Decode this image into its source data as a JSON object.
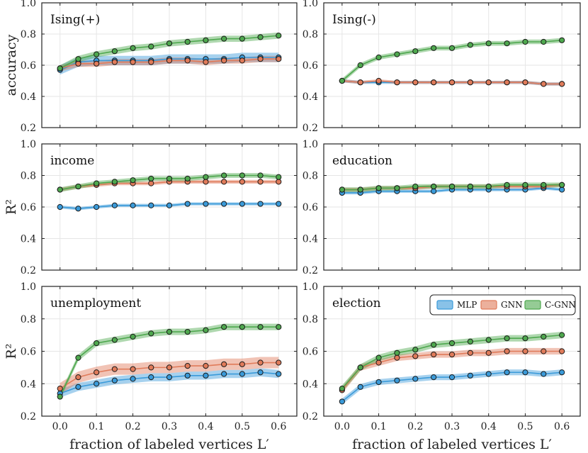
{
  "figure": {
    "xlabel": "fraction of labeled vertices L′",
    "legend": [
      {
        "name": "MLP",
        "color": "#3a9ad9"
      },
      {
        "name": "GNN",
        "color": "#e07b5a"
      },
      {
        "name": "C-GNN",
        "color": "#4ea84e"
      }
    ],
    "legend_position": "top-right of election panel"
  },
  "chart_data": [
    {
      "type": "line",
      "title": "Ising(+)",
      "ylabel": "accuracy",
      "xlabel": "",
      "xlim": [
        -0.05,
        0.65
      ],
      "ylim": [
        0.2,
        1.0
      ],
      "grid": true,
      "x": [
        0,
        0.05,
        0.1,
        0.15,
        0.2,
        0.25,
        0.3,
        0.35,
        0.4,
        0.45,
        0.5,
        0.55,
        0.6
      ],
      "xticks": [
        "0.0",
        "0.1",
        "0.2",
        "0.3",
        "0.4",
        "0.5",
        "0.6"
      ],
      "yticks": [
        "0.2",
        "0.4",
        "0.6",
        "0.8",
        "1.0"
      ],
      "series": [
        {
          "name": "MLP",
          "values": [
            0.57,
            0.62,
            0.63,
            0.63,
            0.63,
            0.63,
            0.64,
            0.64,
            0.64,
            0.64,
            0.65,
            0.65,
            0.65
          ],
          "band": 0.03
        },
        {
          "name": "GNN",
          "values": [
            0.58,
            0.61,
            0.61,
            0.62,
            0.62,
            0.62,
            0.63,
            0.63,
            0.62,
            0.63,
            0.63,
            0.64,
            0.64
          ],
          "band": 0.02
        },
        {
          "name": "C-GNN",
          "values": [
            0.58,
            0.64,
            0.67,
            0.69,
            0.71,
            0.72,
            0.74,
            0.75,
            0.76,
            0.77,
            0.77,
            0.78,
            0.79
          ],
          "band": 0.02
        }
      ]
    },
    {
      "type": "line",
      "title": "Ising(-)",
      "ylabel": "",
      "xlabel": "",
      "xlim": [
        -0.05,
        0.65
      ],
      "ylim": [
        0.2,
        1.0
      ],
      "grid": true,
      "x": [
        0,
        0.05,
        0.1,
        0.15,
        0.2,
        0.25,
        0.3,
        0.35,
        0.4,
        0.45,
        0.5,
        0.55,
        0.6
      ],
      "xticks": [
        "0.0",
        "0.1",
        "0.2",
        "0.3",
        "0.4",
        "0.5",
        "0.6"
      ],
      "yticks": [
        "0.2",
        "0.4",
        "0.6",
        "0.8",
        "1.0"
      ],
      "series": [
        {
          "name": "MLP",
          "values": [
            0.5,
            0.49,
            0.49,
            0.49,
            0.49,
            0.49,
            0.49,
            0.49,
            0.49,
            0.49,
            0.49,
            0.48,
            0.48
          ],
          "band": 0.01
        },
        {
          "name": "GNN",
          "values": [
            0.5,
            0.49,
            0.5,
            0.49,
            0.49,
            0.49,
            0.49,
            0.49,
            0.49,
            0.49,
            0.49,
            0.48,
            0.48
          ],
          "band": 0.01
        },
        {
          "name": "C-GNN",
          "values": [
            0.5,
            0.6,
            0.65,
            0.67,
            0.69,
            0.71,
            0.71,
            0.73,
            0.74,
            0.74,
            0.75,
            0.75,
            0.76
          ],
          "band": 0.015
        }
      ]
    },
    {
      "type": "line",
      "title": "income",
      "ylabel": "R²",
      "xlabel": "",
      "xlim": [
        -0.05,
        0.65
      ],
      "ylim": [
        0.2,
        1.0
      ],
      "grid": true,
      "x": [
        0,
        0.05,
        0.1,
        0.15,
        0.2,
        0.25,
        0.3,
        0.35,
        0.4,
        0.45,
        0.5,
        0.55,
        0.6
      ],
      "xticks": [
        "0.0",
        "0.1",
        "0.2",
        "0.3",
        "0.4",
        "0.5",
        "0.6"
      ],
      "yticks": [
        "0.2",
        "0.4",
        "0.6",
        "0.8",
        "1.0"
      ],
      "series": [
        {
          "name": "MLP",
          "values": [
            0.6,
            0.59,
            0.6,
            0.61,
            0.61,
            0.61,
            0.61,
            0.62,
            0.62,
            0.62,
            0.62,
            0.62,
            0.62
          ],
          "band": 0.01
        },
        {
          "name": "GNN",
          "values": [
            0.71,
            0.73,
            0.74,
            0.75,
            0.75,
            0.75,
            0.76,
            0.76,
            0.76,
            0.76,
            0.76,
            0.76,
            0.76
          ],
          "band": 0.012
        },
        {
          "name": "C-GNN",
          "values": [
            0.71,
            0.73,
            0.75,
            0.76,
            0.77,
            0.78,
            0.78,
            0.78,
            0.79,
            0.8,
            0.8,
            0.8,
            0.79
          ],
          "band": 0.015
        }
      ]
    },
    {
      "type": "line",
      "title": "education",
      "ylabel": "",
      "xlabel": "",
      "xlim": [
        -0.05,
        0.65
      ],
      "ylim": [
        0.2,
        1.0
      ],
      "grid": true,
      "x": [
        0,
        0.05,
        0.1,
        0.15,
        0.2,
        0.25,
        0.3,
        0.35,
        0.4,
        0.45,
        0.5,
        0.55,
        0.6
      ],
      "xticks": [
        "0.0",
        "0.1",
        "0.2",
        "0.3",
        "0.4",
        "0.5",
        "0.6"
      ],
      "yticks": [
        "0.2",
        "0.4",
        "0.6",
        "0.8",
        "1.0"
      ],
      "series": [
        {
          "name": "MLP",
          "values": [
            0.69,
            0.69,
            0.7,
            0.7,
            0.7,
            0.7,
            0.71,
            0.71,
            0.71,
            0.71,
            0.71,
            0.72,
            0.71
          ],
          "band": 0.01
        },
        {
          "name": "GNN",
          "values": [
            0.71,
            0.71,
            0.72,
            0.72,
            0.72,
            0.73,
            0.73,
            0.73,
            0.73,
            0.73,
            0.73,
            0.73,
            0.74
          ],
          "band": 0.012
        },
        {
          "name": "C-GNN",
          "values": [
            0.71,
            0.71,
            0.72,
            0.72,
            0.73,
            0.73,
            0.73,
            0.73,
            0.73,
            0.74,
            0.74,
            0.74,
            0.74
          ],
          "band": 0.015
        }
      ]
    },
    {
      "type": "line",
      "title": "unemployment",
      "ylabel": "R²",
      "xlabel": "fraction of labeled vertices L′",
      "xlim": [
        -0.05,
        0.65
      ],
      "ylim": [
        0.2,
        1.0
      ],
      "grid": true,
      "x": [
        0,
        0.05,
        0.1,
        0.15,
        0.2,
        0.25,
        0.3,
        0.35,
        0.4,
        0.45,
        0.5,
        0.55,
        0.6
      ],
      "xticks": [
        "0.0",
        "0.1",
        "0.2",
        "0.3",
        "0.4",
        "0.5",
        "0.6"
      ],
      "yticks": [
        "0.2",
        "0.4",
        "0.6",
        "0.8",
        "1.0"
      ],
      "series": [
        {
          "name": "MLP",
          "values": [
            0.34,
            0.38,
            0.4,
            0.42,
            0.43,
            0.44,
            0.44,
            0.45,
            0.45,
            0.46,
            0.46,
            0.47,
            0.46
          ],
          "band": 0.025
        },
        {
          "name": "GNN",
          "values": [
            0.37,
            0.44,
            0.47,
            0.49,
            0.49,
            0.5,
            0.5,
            0.51,
            0.51,
            0.52,
            0.52,
            0.53,
            0.53
          ],
          "band": 0.035
        },
        {
          "name": "C-GNN",
          "values": [
            0.32,
            0.56,
            0.65,
            0.67,
            0.69,
            0.71,
            0.72,
            0.72,
            0.73,
            0.75,
            0.75,
            0.75,
            0.75
          ],
          "band": 0.02
        }
      ]
    },
    {
      "type": "line",
      "title": "election",
      "ylabel": "",
      "xlabel": "fraction of labeled vertices L′",
      "xlim": [
        -0.05,
        0.65
      ],
      "ylim": [
        0.2,
        1.0
      ],
      "grid": true,
      "x": [
        0,
        0.05,
        0.1,
        0.15,
        0.2,
        0.25,
        0.3,
        0.35,
        0.4,
        0.45,
        0.5,
        0.55,
        0.6
      ],
      "xticks": [
        "0.0",
        "0.1",
        "0.2",
        "0.3",
        "0.4",
        "0.5",
        "0.6"
      ],
      "yticks": [
        "0.2",
        "0.4",
        "0.6",
        "0.8",
        "1.0"
      ],
      "series": [
        {
          "name": "MLP",
          "values": [
            0.29,
            0.38,
            0.41,
            0.42,
            0.43,
            0.44,
            0.44,
            0.45,
            0.46,
            0.47,
            0.47,
            0.46,
            0.47
          ],
          "band": 0.018
        },
        {
          "name": "GNN",
          "values": [
            0.36,
            0.5,
            0.53,
            0.56,
            0.57,
            0.58,
            0.58,
            0.59,
            0.59,
            0.6,
            0.6,
            0.6,
            0.6
          ],
          "band": 0.02
        },
        {
          "name": "C-GNN",
          "values": [
            0.37,
            0.5,
            0.56,
            0.59,
            0.61,
            0.64,
            0.65,
            0.66,
            0.67,
            0.68,
            0.68,
            0.69,
            0.7
          ],
          "band": 0.02
        }
      ]
    }
  ]
}
